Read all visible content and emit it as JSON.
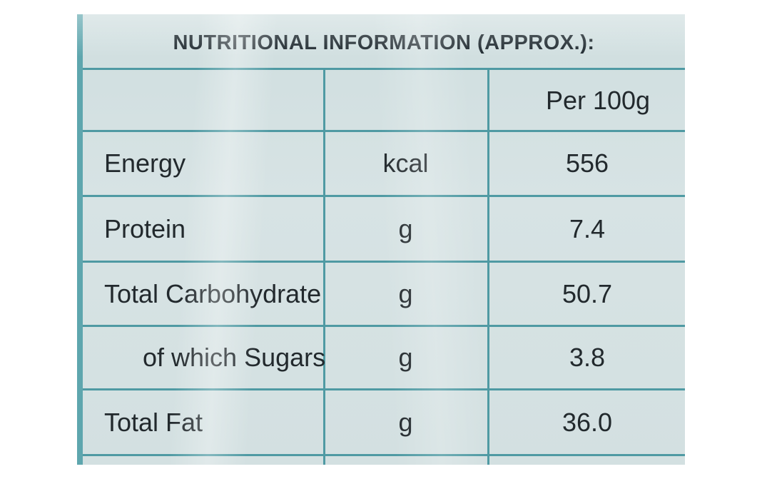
{
  "label": {
    "title": "NUTRITIONAL INFORMATION (APPROX.):",
    "column_header": "Per 100g",
    "rows": [
      {
        "name": "Energy",
        "unit": "kcal",
        "value": "556"
      },
      {
        "name": "Protein",
        "unit": "g",
        "value": "7.4"
      },
      {
        "name": "Total Carbohydrate",
        "unit": "g",
        "value": "50.7"
      },
      {
        "name": "of which Sugars",
        "unit": "g",
        "value": "3.8"
      },
      {
        "name": "Total Fat",
        "unit": "g",
        "value": "36.0"
      }
    ]
  },
  "colors": {
    "rule": "#4f9aa3",
    "background": "#d3e0e1",
    "text": "#22292d"
  }
}
